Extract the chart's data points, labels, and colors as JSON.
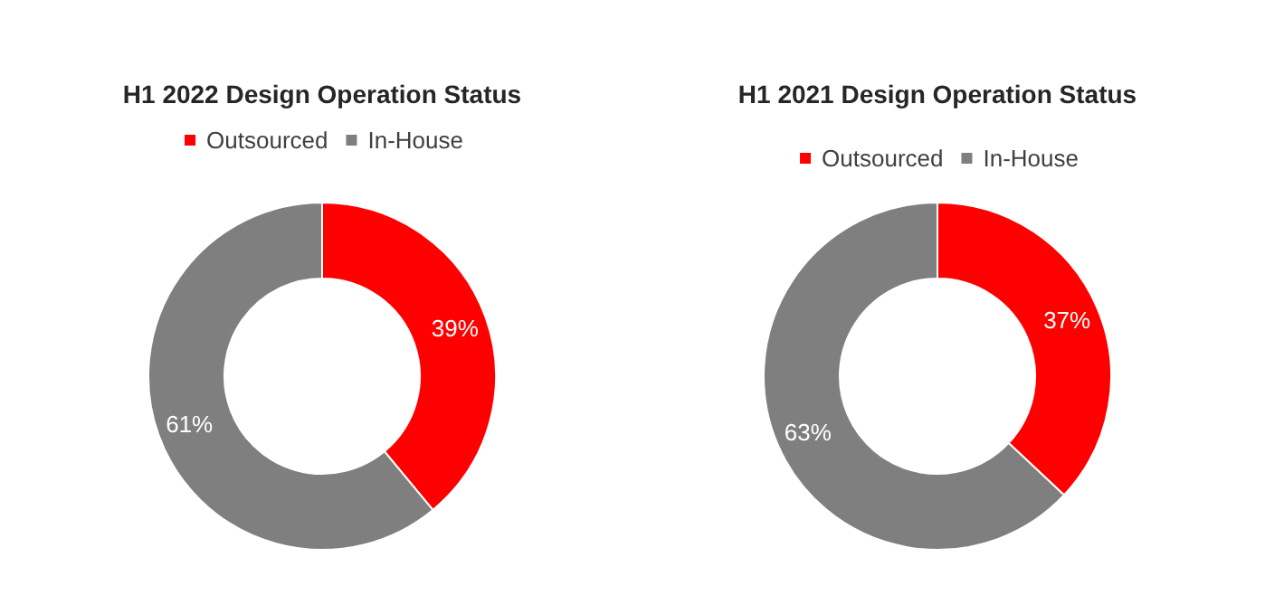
{
  "chart_data": [
    {
      "type": "donut",
      "title": "H1 2022 Design Operation Status",
      "categories": [
        "Outsourced",
        "In-House"
      ],
      "values": [
        39,
        61
      ],
      "colors": [
        "#ff0000",
        "#7f7f7f"
      ],
      "value_labels": [
        "39%",
        "61%"
      ],
      "legend": "top"
    },
    {
      "type": "donut",
      "title": "H1 2021 Design Operation Status",
      "categories": [
        "Outsourced",
        "In-House"
      ],
      "values": [
        37,
        63
      ],
      "colors": [
        "#ff0000",
        "#7f7f7f"
      ],
      "value_labels": [
        "37%",
        "63%"
      ],
      "legend": "top"
    }
  ]
}
